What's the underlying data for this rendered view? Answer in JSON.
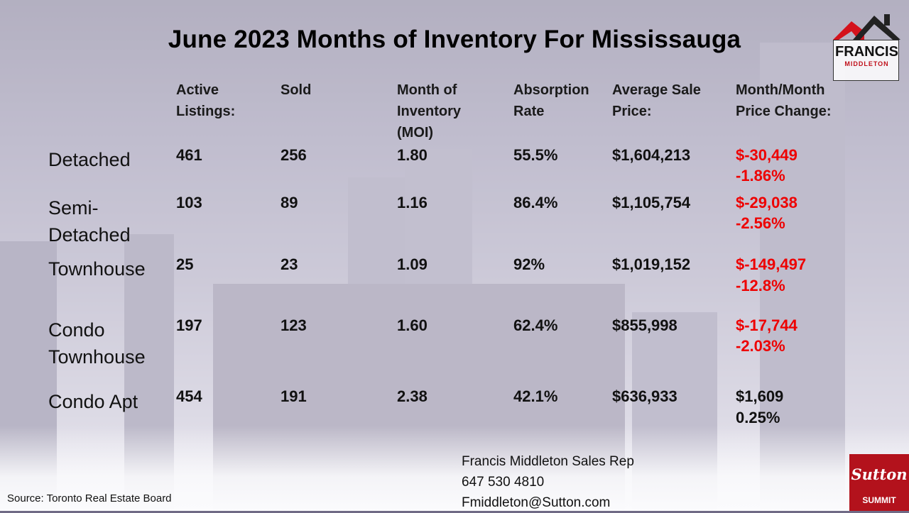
{
  "title": "June 2023 Months of Inventory For Mississauga",
  "colors": {
    "negative": "#ee0000",
    "positive": "#111111",
    "brand_red": "#b3121c"
  },
  "logo": {
    "name": "FRANCIS",
    "surname": "MIDDLETON"
  },
  "headers": {
    "active": "Active\nListings:",
    "sold": "Sold",
    "moi": "Month of\nInventory\n(MOI)",
    "absorption": "Absorption\nRate",
    "avg_price": "Average Sale\nPrice:",
    "change": "Month/Month\nPrice Change:"
  },
  "rows": [
    {
      "label": "Detached",
      "active": "461",
      "sold": "256",
      "moi": "1.80",
      "absorption": "55.5%",
      "avg_price": "$1,604,213",
      "change_amount": "$-30,449",
      "change_pct": "-1.86%",
      "negative": true
    },
    {
      "label": "Semi-\nDetached",
      "active": "103",
      "sold": "89",
      "moi": "1.16",
      "absorption": "86.4%",
      "avg_price": "$1,105,754",
      "change_amount": "$-29,038",
      "change_pct": "-2.56%",
      "negative": true
    },
    {
      "label": "Townhouse",
      "active": "25",
      "sold": "23",
      "moi": "1.09",
      "absorption": "92%",
      "avg_price": "$1,019,152",
      "change_amount": "$-149,497",
      "change_pct": "-12.8%",
      "negative": true
    },
    {
      "label": "Condo\nTownhouse",
      "active": "197",
      "sold": "123",
      "moi": "1.60",
      "absorption": "62.4%",
      "avg_price": "$855,998",
      "change_amount": "$-17,744",
      "change_pct": "-2.03%",
      "negative": true
    },
    {
      "label": "Condo Apt",
      "active": "454",
      "sold": "191",
      "moi": "2.38",
      "absorption": "42.1%",
      "avg_price": "$636,933",
      "change_amount": "$1,609",
      "change_pct": "0.25%",
      "negative": false
    }
  ],
  "contact": {
    "name": "Francis Middleton Sales Rep",
    "phone": "647 530 4810",
    "email": "Fmiddleton@Sutton.com"
  },
  "source": "Source: Toronto Real Estate Board",
  "sutton": {
    "name": "Sutton",
    "sub": "SUMMIT"
  }
}
